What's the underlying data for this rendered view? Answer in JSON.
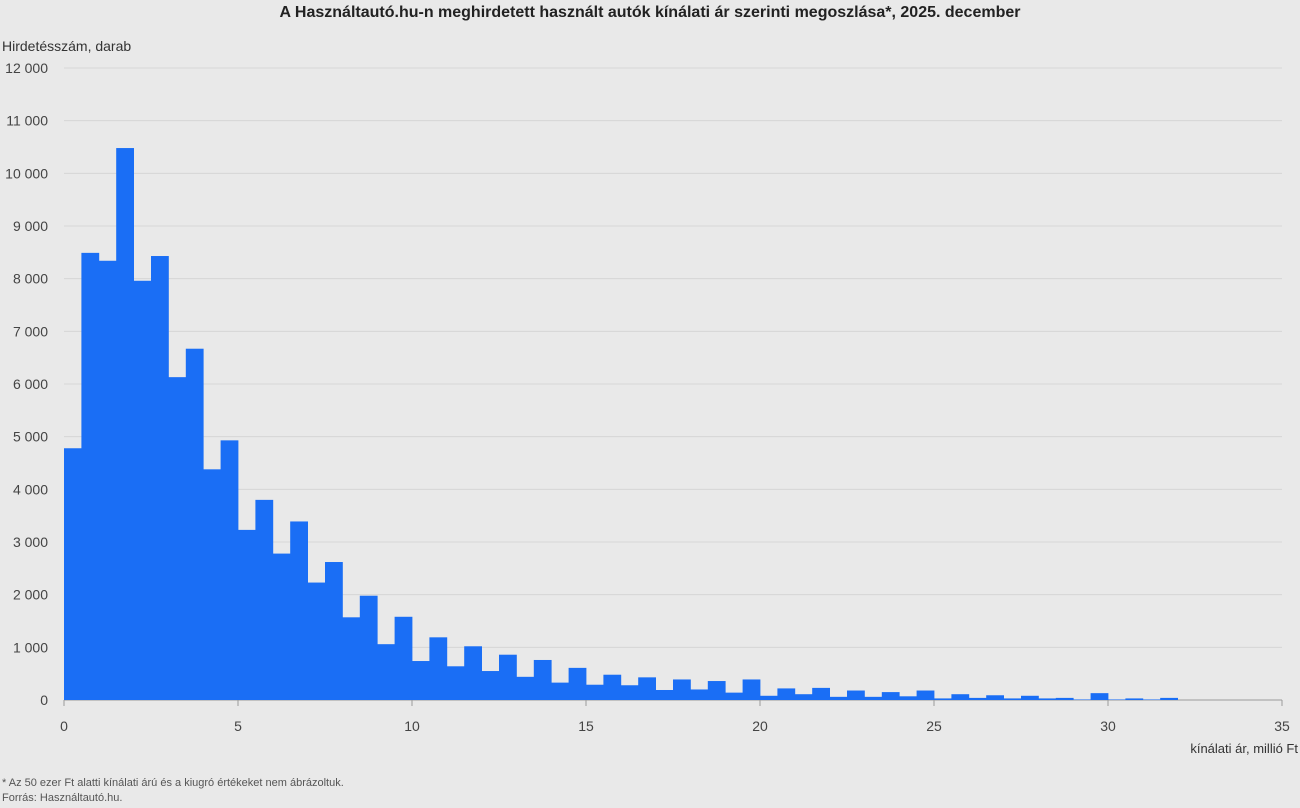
{
  "chart_data": {
    "type": "bar",
    "title": "A Használtautó.hu-n meghirdetett használt autók kínálati ár szerinti megoszlása*, 2025. december",
    "ylabel": "Hirdetésszám, darab",
    "xlabel": "kínálati ár, millió Ft",
    "xlim": [
      0,
      35
    ],
    "ylim": [
      0,
      12000
    ],
    "bin_width": 0.5,
    "x_ticks": [
      0,
      5,
      10,
      15,
      20,
      25,
      30,
      35
    ],
    "y_ticks": [
      0,
      1000,
      2000,
      3000,
      4000,
      5000,
      6000,
      7000,
      8000,
      9000,
      10000,
      11000,
      12000
    ],
    "y_tick_labels": [
      "0",
      "1 000",
      "2 000",
      "3 000",
      "4 000",
      "5 000",
      "6 000",
      "7 000",
      "8 000",
      "9 000",
      "10 000",
      "11 000",
      "12 000"
    ],
    "grid": true,
    "color": "#1a6ef5",
    "bin_starts": [
      0,
      0.5,
      1,
      1.5,
      2,
      2.5,
      3,
      3.5,
      4,
      4.5,
      5,
      5.5,
      6,
      6.5,
      7,
      7.5,
      8,
      8.5,
      9,
      9.5,
      10,
      10.5,
      11,
      11.5,
      12,
      12.5,
      13,
      13.5,
      14,
      14.5,
      15,
      15.5,
      16,
      16.5,
      17,
      17.5,
      18,
      18.5,
      19,
      19.5,
      20,
      20.5,
      21,
      21.5,
      22,
      22.5,
      23,
      23.5,
      24,
      24.5,
      25,
      25.5,
      26,
      26.5,
      27,
      27.5,
      28,
      28.5,
      29,
      29.5,
      30,
      30.5,
      31,
      31.5,
      32
    ],
    "values": [
      4780,
      8490,
      8340,
      10480,
      7960,
      8430,
      6130,
      6670,
      4380,
      4930,
      3230,
      3800,
      2780,
      3390,
      2230,
      2620,
      1570,
      1980,
      1060,
      1580,
      740,
      1190,
      640,
      1020,
      550,
      860,
      440,
      760,
      330,
      610,
      290,
      480,
      280,
      430,
      190,
      390,
      200,
      360,
      140,
      390,
      80,
      220,
      110,
      230,
      60,
      180,
      60,
      150,
      70,
      180,
      30,
      110,
      40,
      90,
      30,
      80,
      30,
      40,
      10,
      130,
      10,
      30,
      10,
      40,
      0
    ]
  },
  "footnote": "* Az 50 ezer Ft alatti kínálati árú és a kiugró értékeket nem ábrázoltuk.",
  "source": "Forrás: Használtautó.hu."
}
